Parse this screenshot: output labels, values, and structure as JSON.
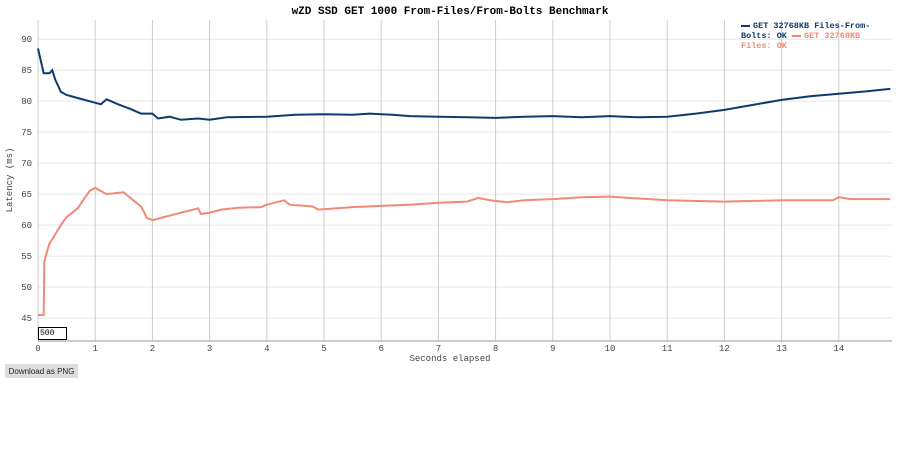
{
  "chart_data": {
    "type": "line",
    "title": "wZD SSD GET 1000 From-Files/From-Bolts Benchmark",
    "x_label": "Seconds elapsed",
    "y_label": "Latency (ms)",
    "xlim": [
      0,
      14.93
    ],
    "ylim": [
      41.3,
      93.1
    ],
    "xticks": [
      0,
      1,
      2,
      3,
      4,
      5,
      6,
      7,
      8,
      9,
      10,
      11,
      12,
      13,
      14
    ],
    "yticks": [
      45,
      50,
      55,
      60,
      65,
      70,
      75,
      80,
      85,
      90
    ],
    "grid": true,
    "legend": "top-right",
    "series": [
      {
        "name": "GET 32768KB Files-From-Bolts: OK",
        "color": "#0f3a6e",
        "x": [
          0,
          0.1,
          0.2,
          0.25,
          0.3,
          0.4,
          0.5,
          0.7,
          0.9,
          1.1,
          1.2,
          1.4,
          1.6,
          1.8,
          2.0,
          2.1,
          2.3,
          2.5,
          2.8,
          3.0,
          3.3,
          4.0,
          4.5,
          5.0,
          5.5,
          5.8,
          6.2,
          6.5,
          7.0,
          7.5,
          8.0,
          8.5,
          9.0,
          9.5,
          10.0,
          10.5,
          11.0,
          11.5,
          12.0,
          12.5,
          13.0,
          13.5,
          14.0,
          14.5,
          14.9
        ],
        "values": [
          88.5,
          84.5,
          84.5,
          85,
          83.5,
          81.5,
          81,
          80.5,
          80,
          79.5,
          80.3,
          79.5,
          78.8,
          78,
          78,
          77.2,
          77.5,
          77,
          77.2,
          77,
          77.4,
          77.5,
          77.8,
          77.9,
          77.8,
          78,
          77.8,
          77.6,
          77.5,
          77.4,
          77.3,
          77.5,
          77.6,
          77.4,
          77.6,
          77.4,
          77.5,
          78,
          78.6,
          79.4,
          80.2,
          80.8,
          81.2,
          81.6,
          82
        ]
      },
      {
        "name": "GET 32768KB Files: OK",
        "color": "#f08a78",
        "x": [
          0,
          0.1,
          0.11,
          0.15,
          0.2,
          0.3,
          0.4,
          0.5,
          0.6,
          0.7,
          0.9,
          1.0,
          1.1,
          1.2,
          1.5,
          1.6,
          1.8,
          1.85,
          1.9,
          2.0,
          2.2,
          2.5,
          2.8,
          2.85,
          3.0,
          3.2,
          3.5,
          3.9,
          4.0,
          4.3,
          4.4,
          4.8,
          4.9,
          5.5,
          6.0,
          6.5,
          7.0,
          7.5,
          7.7,
          7.9,
          8.2,
          8.5,
          9.0,
          9.5,
          10.0,
          10.5,
          11.0,
          12.0,
          12.5,
          13.0,
          13.9,
          14.0,
          14.2,
          14.9
        ],
        "values": [
          45.5,
          45.5,
          54,
          55.5,
          57,
          58.5,
          60,
          61.3,
          62,
          62.8,
          65.5,
          66,
          65.5,
          65,
          65.3,
          64.5,
          63,
          62.2,
          61.2,
          60.8,
          61.3,
          62,
          62.7,
          61.8,
          62,
          62.5,
          62.8,
          62.9,
          63.3,
          64,
          63.3,
          63,
          62.5,
          62.9,
          63.1,
          63.3,
          63.6,
          63.8,
          64.4,
          64,
          63.7,
          64,
          64.2,
          64.5,
          64.6,
          64.3,
          64,
          63.8,
          63.9,
          64,
          64,
          64.5,
          64.2,
          64.2
        ]
      }
    ]
  },
  "controls": {
    "range_box": "500",
    "download_button": "Download as PNG"
  }
}
